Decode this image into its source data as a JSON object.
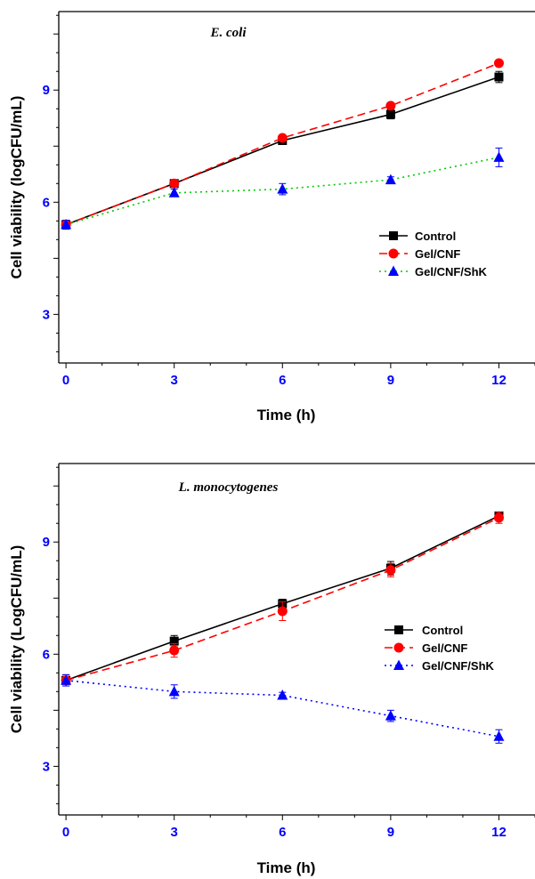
{
  "chart_data": [
    {
      "type": "line",
      "title": "E. coli",
      "xlabel": "Time (h)",
      "ylabel": "Cell viability (logCFU/mL)",
      "xlim": [
        -0.2,
        13
      ],
      "ylim": [
        1.7,
        11.1
      ],
      "xticks": [
        0,
        3,
        6,
        9,
        12
      ],
      "yticks": [
        3,
        6,
        9
      ],
      "x": [
        0,
        3,
        6,
        9,
        12
      ],
      "legend_position": "center-right",
      "series": [
        {
          "name": "Control",
          "values": [
            5.4,
            6.5,
            7.65,
            8.35,
            9.35
          ],
          "errors": [
            0.12,
            0.08,
            0.08,
            0.12,
            0.15
          ],
          "color": "#000000",
          "marker": "square",
          "dash": "solid"
        },
        {
          "name": "Gel/CNF",
          "values": [
            5.4,
            6.5,
            7.72,
            8.58,
            9.72
          ],
          "errors": [
            0.12,
            0.08,
            0.06,
            0.08,
            0.06
          ],
          "color": "#ff0000",
          "marker": "circle",
          "dash": "dashed"
        },
        {
          "name": "Gel/CNF/ShK",
          "values": [
            5.4,
            6.25,
            6.35,
            6.6,
            7.2
          ],
          "errors": [
            0.12,
            0.1,
            0.15,
            0.08,
            0.25
          ],
          "color": "#0000ff",
          "marker": "triangle",
          "line_color": "#00cc00",
          "dash": "dotted"
        }
      ]
    },
    {
      "type": "line",
      "title": "L. monocytogenes",
      "xlabel": "Time (h)",
      "ylabel": "Cell viability (LogCFU/mL)",
      "xlim": [
        -0.2,
        13
      ],
      "ylim": [
        1.7,
        11.1
      ],
      "xticks": [
        0,
        3,
        6,
        9,
        12
      ],
      "yticks": [
        3,
        6,
        9
      ],
      "x": [
        0,
        3,
        6,
        9,
        12
      ],
      "legend_position": "center-right",
      "series": [
        {
          "name": "Control",
          "values": [
            5.3,
            6.35,
            7.35,
            8.3,
            9.7
          ],
          "errors": [
            0.15,
            0.15,
            0.12,
            0.18,
            0.1
          ],
          "color": "#000000",
          "marker": "square",
          "dash": "solid"
        },
        {
          "name": "Gel/CNF",
          "values": [
            5.3,
            6.1,
            7.15,
            8.25,
            9.65
          ],
          "errors": [
            0.15,
            0.18,
            0.25,
            0.18,
            0.15
          ],
          "color": "#ff0000",
          "marker": "circle",
          "dash": "dashed"
        },
        {
          "name": "Gel/CNF/ShK",
          "values": [
            5.3,
            5.0,
            4.9,
            4.35,
            3.8
          ],
          "errors": [
            0.15,
            0.18,
            0.08,
            0.15,
            0.18
          ],
          "color": "#0000ff",
          "marker": "triangle",
          "line_color": "#0000ff",
          "dash": "dotted"
        }
      ]
    }
  ]
}
